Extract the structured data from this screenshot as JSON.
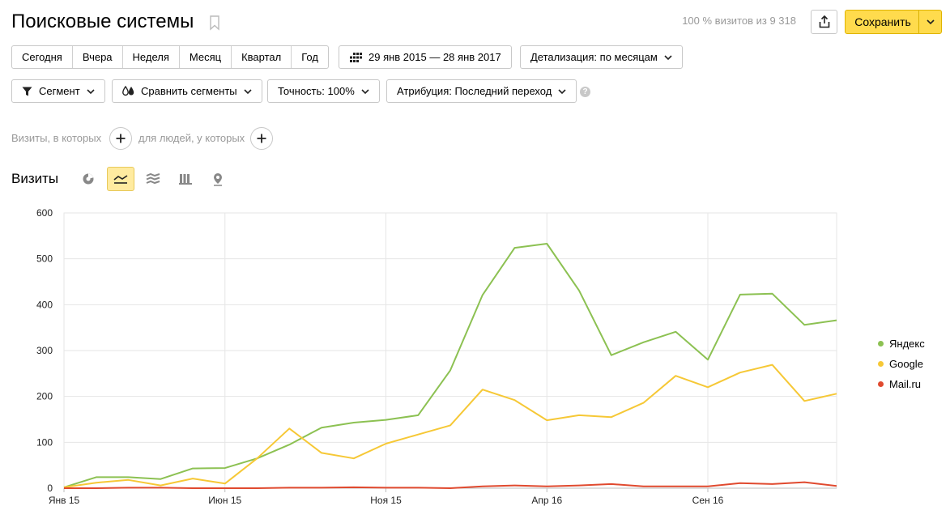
{
  "header": {
    "title": "Поисковые системы",
    "visits_info": "100 % визитов из 9 318",
    "save_label": "Сохранить"
  },
  "periods": [
    "Сегодня",
    "Вчера",
    "Неделя",
    "Месяц",
    "Квартал",
    "Год"
  ],
  "date_range": "29 янв 2015 — 28 янв 2017",
  "detail": "Детализация: по месяцам",
  "filters": {
    "segment": "Сегмент",
    "compare": "Сравнить сегменты",
    "accuracy": "Точность: 100%",
    "attribution": "Атрибуция: Последний переход",
    "help": "?"
  },
  "conditions": {
    "visits_label": "Визиты, в которых",
    "people_label": "для людей, у которых"
  },
  "section": {
    "title": "Визиты",
    "view_icons": [
      "pie-chart-icon",
      "line-chart-icon",
      "stacked-area-icon",
      "bar-chart-icon",
      "map-pin-icon"
    ]
  },
  "chart_data": {
    "type": "line",
    "ylim": [
      0,
      600
    ],
    "yticks": [
      0,
      100,
      200,
      300,
      400,
      500,
      600
    ],
    "x": [
      "2015-01",
      "2015-02",
      "2015-03",
      "2015-04",
      "2015-05",
      "2015-06",
      "2015-07",
      "2015-08",
      "2015-09",
      "2015-10",
      "2015-11",
      "2015-12",
      "2016-01",
      "2016-02",
      "2016-03",
      "2016-04",
      "2016-05",
      "2016-06",
      "2016-07",
      "2016-08",
      "2016-09",
      "2016-10",
      "2016-11",
      "2016-12",
      "2017-01"
    ],
    "xtick_labels": [
      {
        "index": 0,
        "label": "Янв 15"
      },
      {
        "index": 5,
        "label": "Июн 15"
      },
      {
        "index": 10,
        "label": "Ноя 15"
      },
      {
        "index": 15,
        "label": "Апр 16"
      },
      {
        "index": 20,
        "label": "Сен 16"
      }
    ],
    "grid": true,
    "legend_position": "right",
    "series": [
      {
        "name": "Яндекс",
        "color": "#8cc152",
        "values": [
          2,
          24,
          24,
          20,
          43,
          44,
          65,
          95,
          132,
          143,
          149,
          159,
          257,
          421,
          524,
          533,
          431,
          290,
          318,
          341,
          280,
          422,
          424,
          356,
          366
        ]
      },
      {
        "name": "Google",
        "color": "#f6c836",
        "values": [
          2,
          12,
          18,
          6,
          21,
          10,
          65,
          130,
          77,
          65,
          97,
          117,
          137,
          215,
          192,
          148,
          159,
          155,
          186,
          245,
          220,
          252,
          269,
          190,
          206
        ]
      },
      {
        "name": "Mail.ru",
        "color": "#e04a2f",
        "values": [
          0,
          0,
          1,
          1,
          0,
          0,
          0,
          1,
          1,
          2,
          1,
          1,
          0,
          4,
          6,
          4,
          6,
          9,
          4,
          4,
          4,
          11,
          9,
          13,
          5
        ]
      }
    ]
  }
}
